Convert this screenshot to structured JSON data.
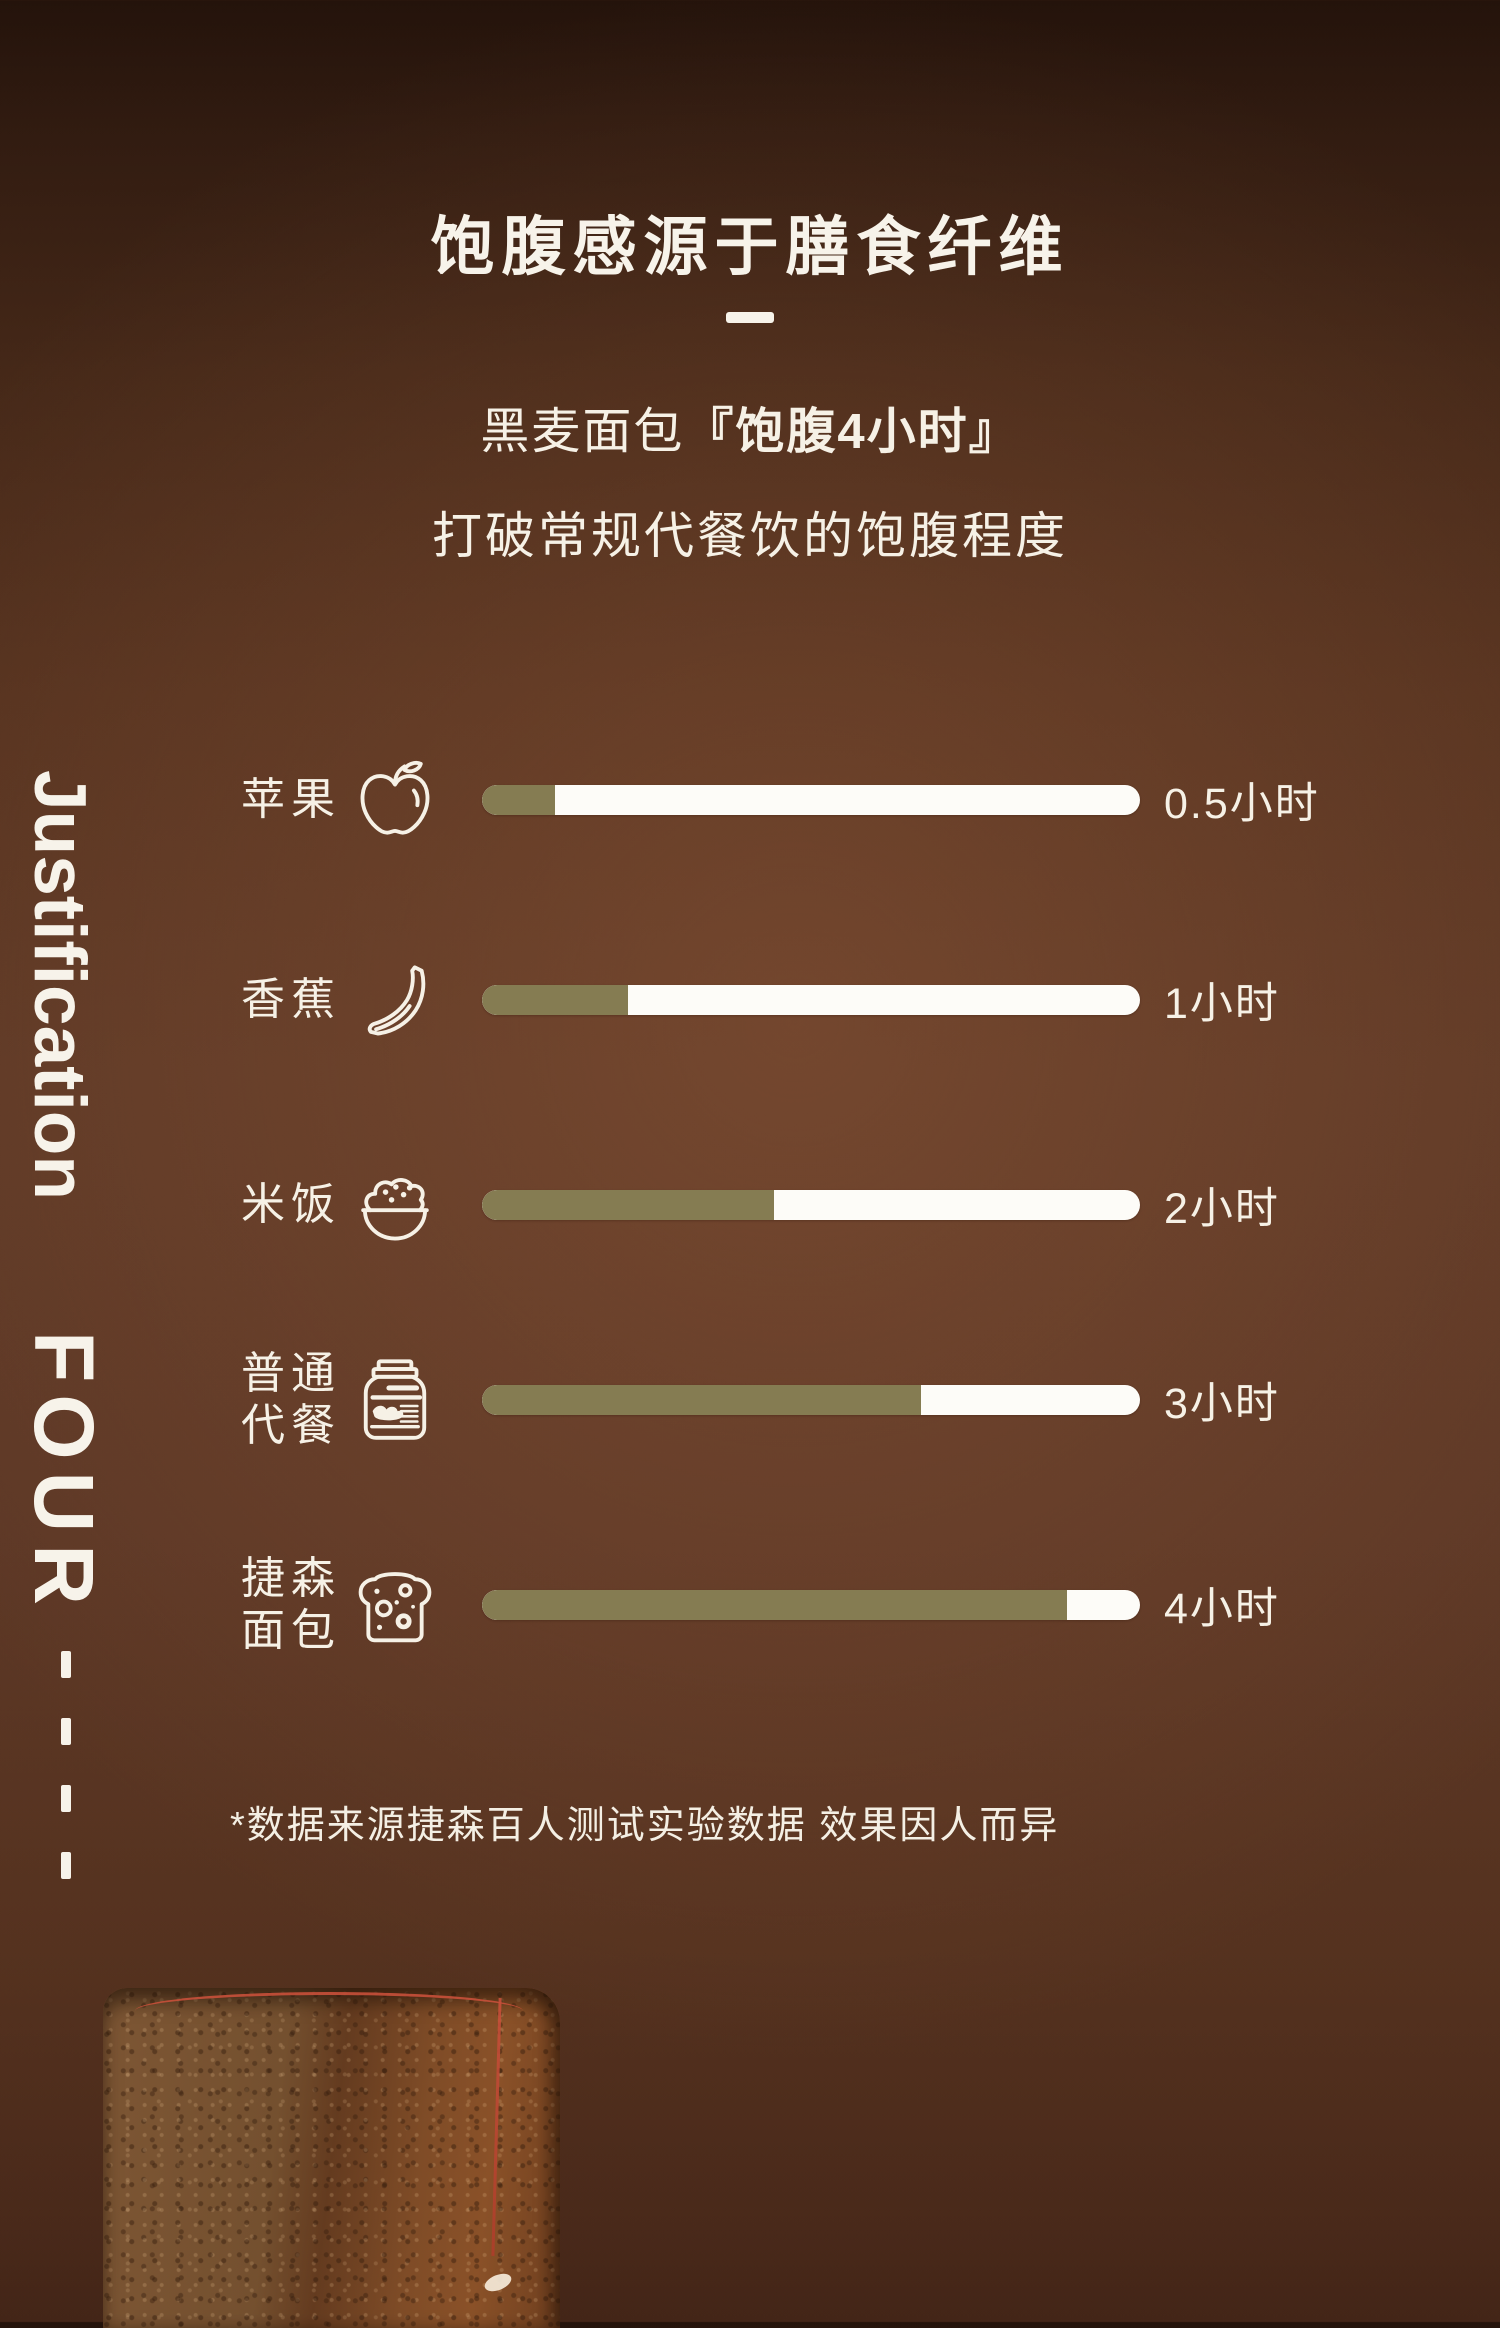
{
  "header": {
    "title": "饱腹感源于膳食纤维",
    "subtitle_prefix": "黑麦面包",
    "subtitle_highlight": "『饱腹4小时』",
    "subtitle_line2": "打破常规代餐饮的饱腹程度"
  },
  "side_label": {
    "word_top": "Justification",
    "word_bottom": "FOUR",
    "dash_count": 4
  },
  "chart_data": {
    "type": "bar",
    "orientation": "horizontal",
    "unit": "小时",
    "xlim": [
      0,
      4.5
    ],
    "grid": false,
    "track_color": "#ffffff",
    "fill_color": "#857c52",
    "categories": [
      "苹果",
      "香蕉",
      "米饭",
      "普通代餐",
      "捷森面包"
    ],
    "values": [
      0.5,
      1,
      2,
      3,
      4
    ],
    "items": [
      {
        "label": "苹果",
        "label_lines": "苹果",
        "icon": "apple-icon",
        "value": 0.5,
        "value_label": "0.5小时"
      },
      {
        "label": "香蕉",
        "label_lines": "香蕉",
        "icon": "banana-icon",
        "value": 1,
        "value_label": "1小时"
      },
      {
        "label": "米饭",
        "label_lines": "米饭",
        "icon": "rice-icon",
        "value": 2,
        "value_label": "2小时"
      },
      {
        "label": "普通代餐",
        "label_lines": "普通\n代餐",
        "icon": "meal-replacement-jar-icon",
        "value": 3,
        "value_label": "3小时"
      },
      {
        "label": "捷森面包",
        "label_lines": "捷森\n面包",
        "icon": "bread-slice-icon",
        "value": 4,
        "value_label": "4小时"
      }
    ]
  },
  "footnote": "*数据来源捷森百人测试实验数据 效果因人而异",
  "colors": {
    "background_center": "#5f3a27",
    "background_dark": "#2a1710",
    "text": "#f6f1e6",
    "bar_fill": "#857c52",
    "bar_track": "#ffffff",
    "thread_red": "#c8503a"
  }
}
